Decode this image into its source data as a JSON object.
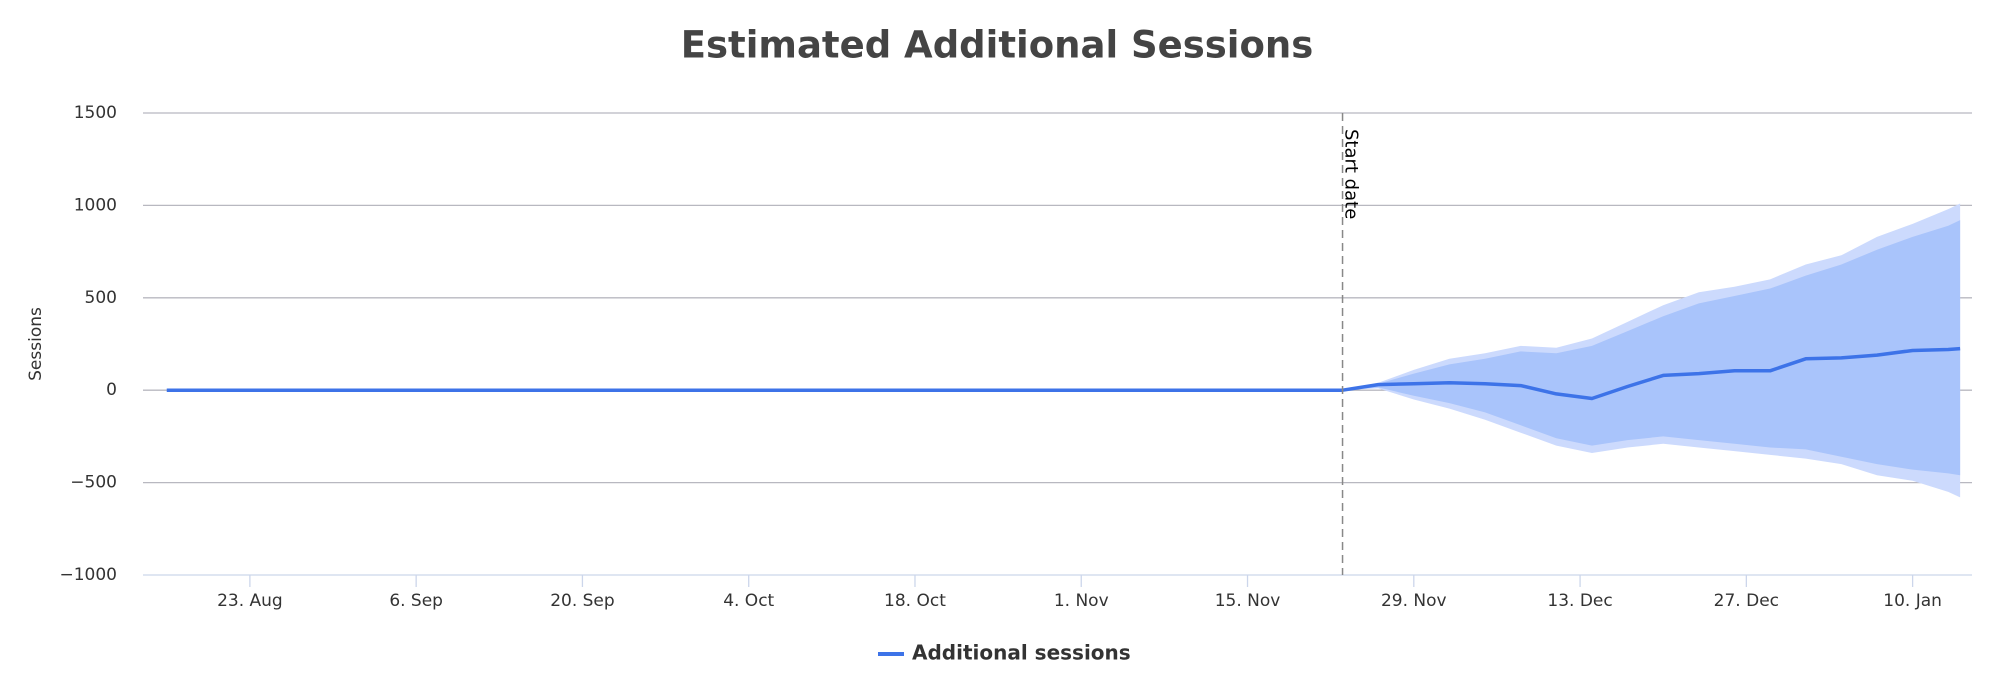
{
  "chart_data": {
    "type": "line",
    "title": "Estimated Additional Sessions",
    "y_label": "Sessions",
    "x": [
      "16. Aug",
      "23. Nov",
      "26. Nov",
      "29. Nov",
      "2. Dec",
      "5. Dec",
      "8. Dec",
      "11. Dec",
      "14. Dec",
      "17. Dec",
      "20. Dec",
      "23. Dec",
      "26. Dec",
      "29. Dec",
      "1. Jan",
      "4. Jan",
      "7. Jan",
      "10. Jan",
      "13. Jan",
      "14. Jan"
    ],
    "series": [
      {
        "name": "Additional sessions",
        "color": "#3d73e8",
        "values": [
          0,
          0,
          30,
          35,
          40,
          35,
          25,
          -20,
          -45,
          20,
          80,
          90,
          105,
          105,
          170,
          175,
          190,
          215,
          220,
          225
        ]
      }
    ],
    "ranges": [
      {
        "color": "#ccdafd",
        "high": [
          null,
          0,
          40,
          110,
          170,
          200,
          240,
          230,
          280,
          370,
          460,
          530,
          560,
          600,
          680,
          730,
          830,
          900,
          980,
          1010
        ],
        "low": [
          null,
          0,
          10,
          -50,
          -100,
          -160,
          -230,
          -300,
          -340,
          -310,
          -290,
          -310,
          -330,
          -350,
          -370,
          -400,
          -460,
          -490,
          -550,
          -580
        ]
      },
      {
        "color": "#a9c4fb",
        "high": [
          null,
          0,
          35,
          90,
          140,
          170,
          210,
          200,
          240,
          320,
          400,
          470,
          510,
          550,
          620,
          680,
          760,
          830,
          890,
          920
        ],
        "low": [
          null,
          0,
          15,
          -30,
          -70,
          -120,
          -190,
          -260,
          -300,
          -270,
          -250,
          -270,
          -290,
          -310,
          -320,
          -360,
          -400,
          -430,
          -450,
          -460
        ]
      }
    ],
    "plot_lines": [
      {
        "x": "23. Nov",
        "label": "Start date"
      }
    ],
    "xlim": [
      "14. Aug",
      "15. Jan"
    ],
    "xticks": [
      "23. Aug",
      "6. Sep",
      "20. Sep",
      "4. Oct",
      "18. Oct",
      "1. Nov",
      "15. Nov",
      "29. Nov",
      "13. Dec",
      "27. Dec",
      "10. Jan"
    ],
    "ylim": [
      -1000,
      1500
    ],
    "yticks": [
      {
        "value": -1000,
        "label": "−1000"
      },
      {
        "value": -500,
        "label": "−500"
      },
      0,
      500,
      1000,
      1500
    ],
    "grid": true,
    "legend": "bottom"
  }
}
